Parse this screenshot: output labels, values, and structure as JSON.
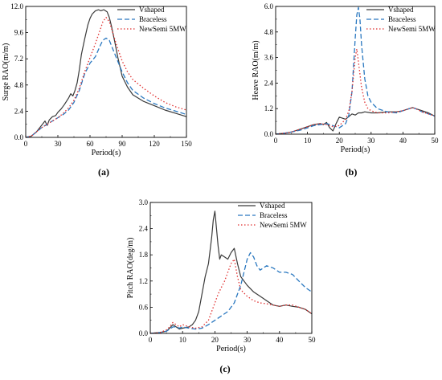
{
  "chart_data": [
    {
      "id": "a",
      "type": "line",
      "panel_label": "(a)",
      "xlabel": "Period(s)",
      "ylabel": "Surge RAO(m/m)",
      "xlim": [
        0,
        150
      ],
      "ylim": [
        0,
        12
      ],
      "xticks": [
        "0",
        "30",
        "60",
        "90",
        "120",
        "150"
      ],
      "yticks": [
        "0.0",
        "2.4",
        "4.8",
        "7.2",
        "9.6",
        "12.0"
      ],
      "legend": "top-right",
      "series": [
        {
          "name": "Vshaped",
          "style": "solid",
          "color": "#3a3a3a",
          "x": [
            0,
            5,
            10,
            14,
            18,
            20,
            22,
            25,
            28,
            30,
            33,
            36,
            40,
            42,
            44,
            46,
            48,
            50,
            52,
            55,
            58,
            60,
            62,
            65,
            68,
            70,
            73,
            76,
            78,
            80,
            83,
            86,
            90,
            95,
            100,
            110,
            120,
            130,
            140,
            150
          ],
          "y": [
            0,
            0.1,
            0.5,
            1.0,
            1.5,
            1.1,
            1.6,
            1.9,
            2.0,
            2.3,
            2.6,
            3.0,
            3.6,
            4.0,
            3.8,
            4.3,
            5.0,
            6.2,
            7.6,
            9.0,
            10.3,
            10.9,
            11.3,
            11.6,
            11.7,
            11.6,
            11.7,
            11.5,
            11.0,
            10.2,
            8.8,
            7.3,
            5.6,
            4.6,
            3.9,
            3.3,
            2.9,
            2.5,
            2.2,
            1.9
          ]
        },
        {
          "name": "Braceless",
          "style": "dashed",
          "color": "#2a78c0",
          "x": [
            0,
            5,
            10,
            15,
            20,
            25,
            30,
            35,
            40,
            45,
            50,
            55,
            60,
            65,
            70,
            72,
            75,
            78,
            80,
            85,
            90,
            95,
            100,
            110,
            120,
            130,
            140,
            150
          ],
          "y": [
            0,
            0.1,
            0.5,
            0.9,
            1.2,
            1.5,
            1.8,
            2.1,
            2.5,
            3.2,
            4.3,
            5.8,
            6.8,
            7.4,
            8.5,
            8.9,
            9.1,
            8.9,
            8.4,
            7.2,
            6.0,
            5.0,
            4.3,
            3.6,
            3.1,
            2.7,
            2.4,
            2.1
          ]
        },
        {
          "name": "NewSemi 5MW",
          "style": "dotted",
          "color": "#e03030",
          "x": [
            0,
            5,
            10,
            15,
            20,
            25,
            30,
            35,
            40,
            45,
            50,
            55,
            60,
            65,
            70,
            72,
            75,
            78,
            80,
            85,
            90,
            95,
            100,
            110,
            120,
            130,
            140,
            150
          ],
          "y": [
            0,
            0.1,
            0.5,
            0.9,
            1.2,
            1.5,
            1.8,
            2.2,
            2.7,
            3.4,
            4.5,
            6.0,
            7.3,
            8.6,
            10.0,
            10.6,
            11.0,
            10.6,
            10.0,
            8.4,
            7.0,
            6.0,
            5.3,
            4.5,
            3.8,
            3.2,
            2.8,
            2.5
          ]
        }
      ]
    },
    {
      "id": "b",
      "type": "line",
      "panel_label": "(b)",
      "xlabel": "Period(s)",
      "ylabel": "Heave RAO(m/m)",
      "xlim": [
        0,
        50
      ],
      "ylim": [
        0,
        6
      ],
      "xticks": [
        "0",
        "10",
        "20",
        "30",
        "40",
        "50"
      ],
      "yticks": [
        "0.0",
        "1.2",
        "2.4",
        "3.6",
        "4.8",
        "6.0"
      ],
      "legend": "top-right",
      "series": [
        {
          "name": "Vshaped",
          "style": "solid",
          "color": "#3a3a3a",
          "x": [
            0,
            3,
            5,
            8,
            10,
            12,
            14,
            15,
            16,
            17,
            18,
            19,
            20,
            22,
            24,
            25,
            26,
            27,
            28,
            30,
            32,
            35,
            38,
            40,
            42,
            43,
            44,
            46,
            48,
            50
          ],
          "y": [
            0,
            0.05,
            0.1,
            0.25,
            0.35,
            0.45,
            0.5,
            0.45,
            0.55,
            0.3,
            0.15,
            0.5,
            0.8,
            0.7,
            0.95,
            0.9,
            1.0,
            1.0,
            1.05,
            1.0,
            1.0,
            1.05,
            1.05,
            1.1,
            1.2,
            1.25,
            1.2,
            1.1,
            1.0,
            0.85
          ]
        },
        {
          "name": "Braceless",
          "style": "dashed",
          "color": "#2a78c0",
          "x": [
            0,
            3,
            5,
            8,
            10,
            12,
            14,
            16,
            18,
            20,
            22,
            23,
            24,
            25,
            25.5,
            26,
            26.5,
            27,
            28,
            29,
            30,
            32,
            35,
            38,
            40,
            42,
            43,
            44,
            46,
            48,
            50
          ],
          "y": [
            0,
            0.05,
            0.1,
            0.2,
            0.3,
            0.4,
            0.45,
            0.5,
            0.4,
            0.3,
            0.5,
            0.9,
            2.0,
            4.5,
            5.6,
            5.95,
            5.4,
            4.2,
            2.6,
            1.8,
            1.5,
            1.2,
            1.05,
            1.0,
            1.1,
            1.2,
            1.25,
            1.2,
            1.05,
            0.95,
            0.85
          ]
        },
        {
          "name": "NewSemi 5MW",
          "style": "dotted",
          "color": "#e03030",
          "x": [
            0,
            3,
            5,
            8,
            10,
            12,
            14,
            16,
            18,
            20,
            22,
            23,
            24,
            25,
            25.5,
            26,
            27,
            28,
            29,
            30,
            32,
            35,
            38,
            40,
            42,
            43,
            44,
            46,
            48,
            50
          ],
          "y": [
            0,
            0.05,
            0.1,
            0.25,
            0.35,
            0.45,
            0.5,
            0.45,
            0.35,
            0.4,
            0.7,
            1.1,
            2.0,
            3.6,
            4.0,
            3.4,
            2.2,
            1.5,
            1.2,
            1.1,
            1.0,
            1.0,
            1.05,
            1.1,
            1.2,
            1.25,
            1.2,
            1.05,
            0.95,
            0.85
          ]
        }
      ]
    },
    {
      "id": "c",
      "type": "line",
      "panel_label": "(c)",
      "xlabel": "Period(s)",
      "ylabel": "Pitch RAO(deg/m)",
      "xlim": [
        0,
        50
      ],
      "ylim": [
        0,
        3
      ],
      "xticks": [
        "0",
        "10",
        "20",
        "30",
        "40",
        "50"
      ],
      "yticks": [
        "0.0",
        "0.6",
        "1.2",
        "1.8",
        "2.4",
        "3.0"
      ],
      "legend": "top-right",
      "series": [
        {
          "name": "Vshaped",
          "style": "solid",
          "color": "#3a3a3a",
          "x": [
            0,
            3,
            5,
            6,
            7,
            8,
            9,
            10,
            12,
            13,
            14,
            15,
            16,
            17,
            18,
            19,
            19.5,
            20,
            20.5,
            21,
            21.5,
            22,
            23,
            24,
            25,
            26,
            27,
            28,
            30,
            32,
            34,
            36,
            38,
            40,
            42,
            44,
            46,
            48,
            50
          ],
          "y": [
            0,
            0.02,
            0.05,
            0.12,
            0.2,
            0.15,
            0.1,
            0.12,
            0.15,
            0.2,
            0.3,
            0.5,
            0.9,
            1.3,
            1.6,
            2.2,
            2.6,
            2.8,
            2.4,
            2.0,
            1.7,
            1.8,
            1.75,
            1.7,
            1.85,
            1.95,
            1.6,
            1.3,
            1.1,
            0.95,
            0.85,
            0.75,
            0.65,
            0.62,
            0.65,
            0.62,
            0.6,
            0.55,
            0.45
          ]
        },
        {
          "name": "Braceless",
          "style": "dashed",
          "color": "#2a78c0",
          "x": [
            0,
            3,
            5,
            6,
            7,
            8,
            9,
            10,
            12,
            14,
            16,
            18,
            20,
            22,
            24,
            26,
            27,
            28,
            29,
            30,
            31,
            32,
            33,
            34,
            35,
            36,
            38,
            40,
            42,
            44,
            46,
            48,
            50
          ],
          "y": [
            0,
            0.02,
            0.05,
            0.1,
            0.15,
            0.15,
            0.12,
            0.15,
            0.12,
            0.1,
            0.12,
            0.2,
            0.3,
            0.4,
            0.5,
            0.7,
            0.9,
            1.1,
            1.4,
            1.7,
            1.85,
            1.75,
            1.55,
            1.45,
            1.5,
            1.55,
            1.5,
            1.4,
            1.4,
            1.35,
            1.2,
            1.05,
            0.95
          ]
        },
        {
          "name": "NewSemi 5MW",
          "style": "dotted",
          "color": "#e03030",
          "x": [
            0,
            3,
            5,
            6,
            7,
            8,
            9,
            10,
            12,
            14,
            16,
            18,
            19,
            20,
            21,
            22,
            23,
            24,
            25,
            26,
            27,
            28,
            30,
            32,
            34,
            36,
            38,
            40,
            42,
            44,
            46,
            48,
            50
          ],
          "y": [
            0,
            0.02,
            0.08,
            0.15,
            0.25,
            0.2,
            0.15,
            0.2,
            0.15,
            0.12,
            0.15,
            0.3,
            0.5,
            0.7,
            0.9,
            1.05,
            1.2,
            1.4,
            1.6,
            1.7,
            1.3,
            1.0,
            0.85,
            0.75,
            0.7,
            0.68,
            0.65,
            0.62,
            0.65,
            0.65,
            0.6,
            0.55,
            0.45
          ]
        }
      ]
    }
  ]
}
